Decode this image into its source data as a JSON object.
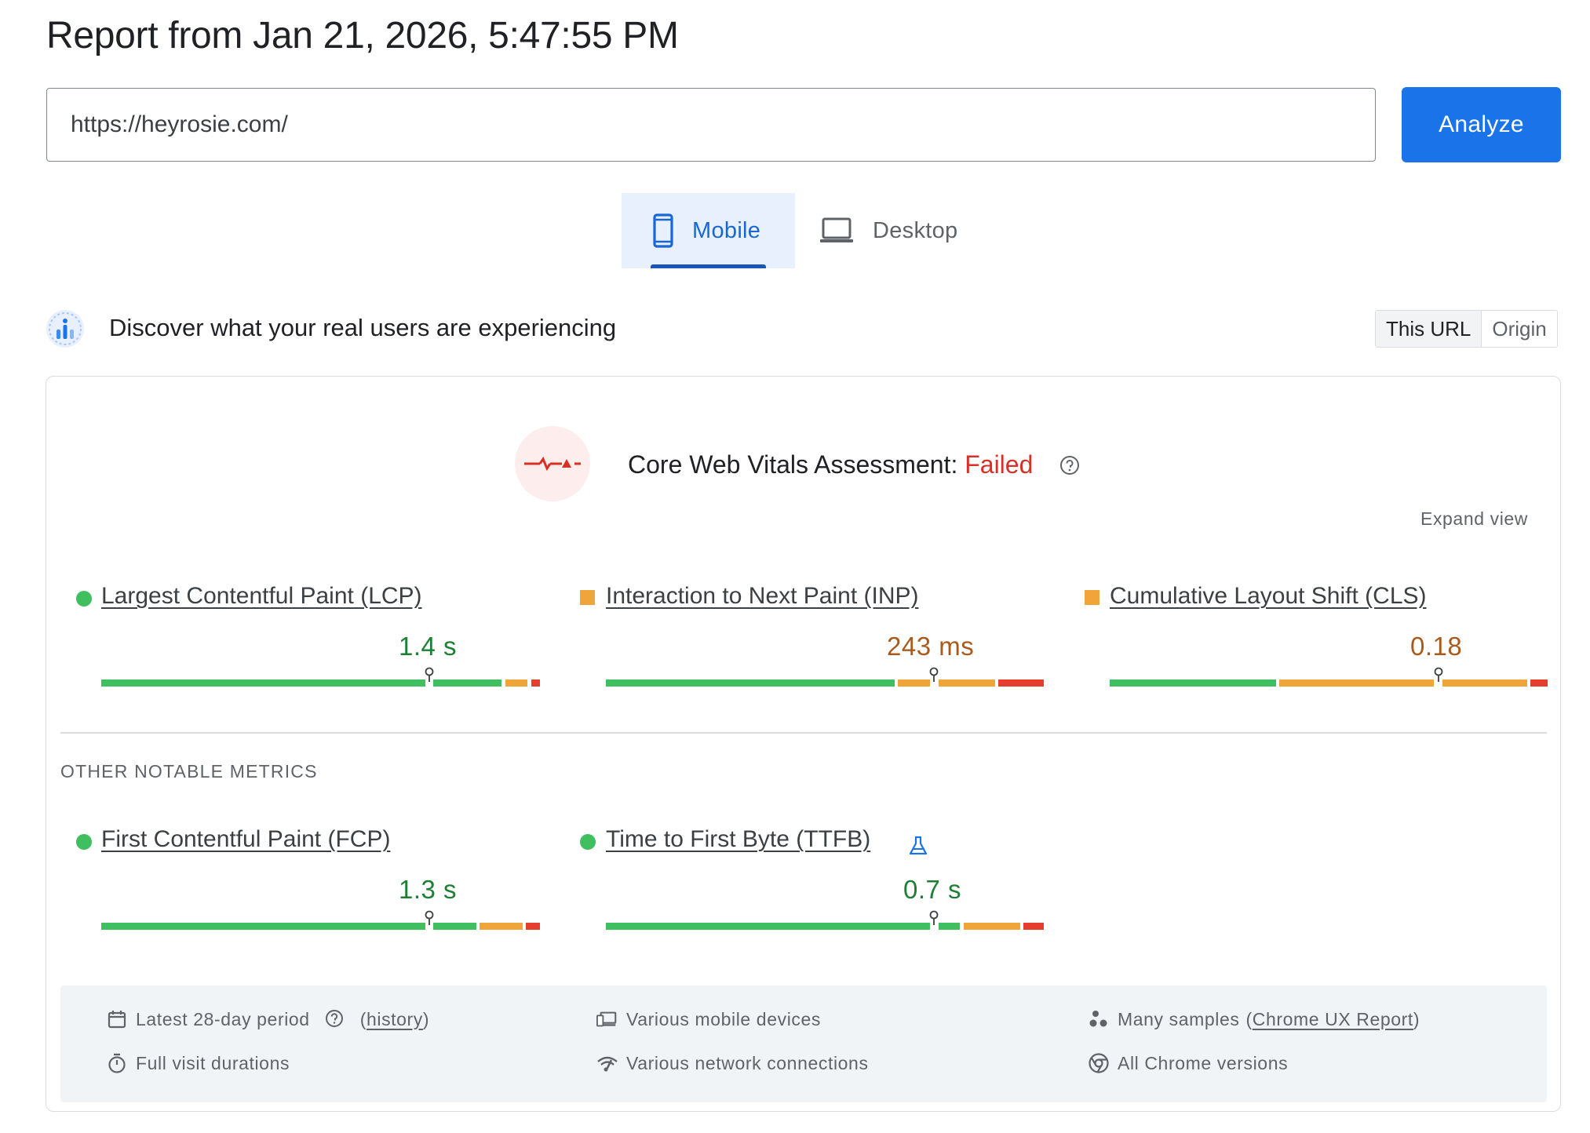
{
  "report": {
    "title": "Report from Jan 21, 2026, 5:47:55 PM"
  },
  "search": {
    "url_value": "https://heyrosie.com/",
    "analyze_label": "Analyze"
  },
  "tabs": [
    {
      "label": "Mobile",
      "selected": true,
      "icon": "smartphone-icon"
    },
    {
      "label": "Desktop",
      "selected": false,
      "icon": "laptop-icon"
    }
  ],
  "field_data": {
    "heading": "Discover what your real users are experiencing",
    "toggle": [
      {
        "label": "This URL",
        "selected": true
      },
      {
        "label": "Origin",
        "selected": false
      }
    ]
  },
  "assessment": {
    "label": "Core Web Vitals Assessment:",
    "status": "Failed",
    "status_color": "#d93025"
  },
  "expand_view_label": "Expand view",
  "core_metrics": [
    {
      "name": "Largest Contentful Paint (LCP)",
      "value": "1.4 s",
      "rating": "good"
    },
    {
      "name": "Interaction to Next Paint (INP)",
      "value": "243 ms",
      "rating": "needs-improvement"
    },
    {
      "name": "Cumulative Layout Shift (CLS)",
      "value": "0.18",
      "rating": "needs-improvement"
    }
  ],
  "other_metrics_label": "OTHER NOTABLE METRICS",
  "other_metrics": [
    {
      "name": "First Contentful Paint (FCP)",
      "value": "1.3 s",
      "rating": "good"
    },
    {
      "name": "Time to First Byte (TTFB)",
      "value": "0.7 s",
      "rating": "good",
      "experimental_icon": "flask-icon"
    }
  ],
  "footer": {
    "period": "Latest 28-day period",
    "history_link": "history",
    "devices": "Various mobile devices",
    "samples_prefix": "Many samples",
    "samples_link": "Chrome UX Report",
    "durations": "Full visit durations",
    "network": "Various network connections",
    "chrome": "All Chrome versions"
  },
  "colors": {
    "good": "#3fbf5f",
    "needs_improvement": "#f0a53a",
    "poor": "#e53e2f",
    "accent": "#1a73e8"
  }
}
